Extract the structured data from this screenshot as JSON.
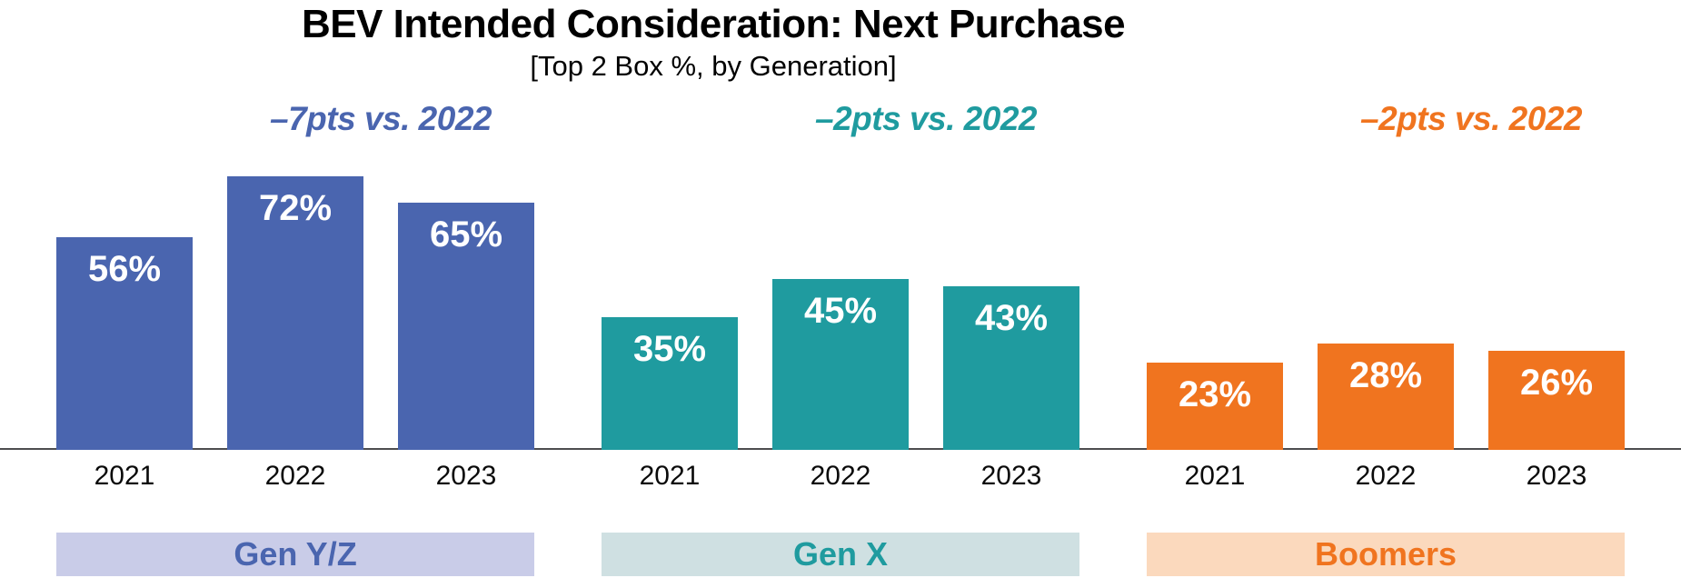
{
  "header": {
    "title": "BEV Intended Consideration: Next Purchase",
    "subtitle": "[Top 2 Box %, by Generation]"
  },
  "chart_data": {
    "type": "bar",
    "title": "BEV Intended Consideration: Next Purchase",
    "subtitle": "[Top 2 Box %, by Generation]",
    "categories": [
      "2021",
      "2022",
      "2023"
    ],
    "value_suffix": "%",
    "ylabel": "",
    "xlabel": "",
    "ylim": [
      0,
      100
    ],
    "grid": false,
    "legend": "none",
    "axis_color": "#4D4D4F",
    "bar_label_color": "#ffffff",
    "series": [
      {
        "name": "Gen Y/Z",
        "values": [
          56,
          72,
          65
        ],
        "annotation": "–7pts vs. 2022",
        "color": "#4A65AF",
        "band_color": "#C9CCE8"
      },
      {
        "name": "Gen X",
        "values": [
          35,
          45,
          43
        ],
        "annotation": "–2pts vs. 2022",
        "color": "#1F9B9F",
        "band_color": "#CFE0E2"
      },
      {
        "name": "Boomers",
        "values": [
          23,
          28,
          26
        ],
        "annotation": "–2pts vs. 2022",
        "color": "#F0741F",
        "band_color": "#FBD9BD"
      }
    ]
  }
}
